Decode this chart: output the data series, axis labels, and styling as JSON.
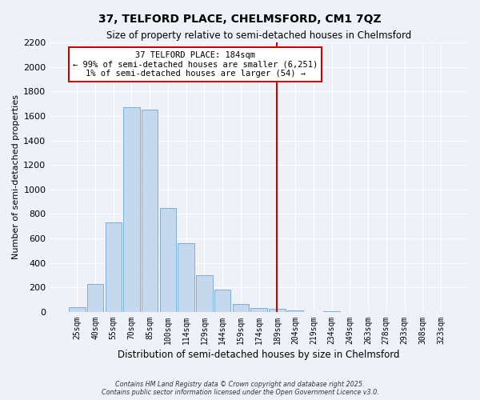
{
  "title1": "37, TELFORD PLACE, CHELMSFORD, CM1 7QZ",
  "title2": "Size of property relative to semi-detached houses in Chelmsford",
  "xlabel": "Distribution of semi-detached houses by size in Chelmsford",
  "ylabel": "Number of semi-detached properties",
  "categories": [
    "25sqm",
    "40sqm",
    "55sqm",
    "70sqm",
    "85sqm",
    "100sqm",
    "114sqm",
    "129sqm",
    "144sqm",
    "159sqm",
    "174sqm",
    "189sqm",
    "204sqm",
    "219sqm",
    "234sqm",
    "249sqm",
    "263sqm",
    "278sqm",
    "293sqm",
    "308sqm",
    "323sqm"
  ],
  "values": [
    40,
    225,
    730,
    1670,
    1650,
    850,
    560,
    300,
    180,
    65,
    35,
    25,
    15,
    0,
    8,
    0,
    0,
    0,
    0,
    0,
    0
  ],
  "bar_color": "#c5d8ee",
  "bar_edge_color": "#7bafd4",
  "ylim": [
    0,
    2200
  ],
  "yticks": [
    0,
    200,
    400,
    600,
    800,
    1000,
    1200,
    1400,
    1600,
    1800,
    2000,
    2200
  ],
  "property_label": "37 TELFORD PLACE: 184sqm",
  "annotation_line1": "← 99% of semi-detached houses are smaller (6,251)",
  "annotation_line2": "1% of semi-detached houses are larger (54) →",
  "vline_color": "#cc0000",
  "annotation_box_color": "#cc0000",
  "background_color": "#eef2f8",
  "grid_color": "#ffffff",
  "footer1": "Contains HM Land Registry data © Crown copyright and database right 2025.",
  "footer2": "Contains public sector information licensed under the Open Government Licence v3.0."
}
